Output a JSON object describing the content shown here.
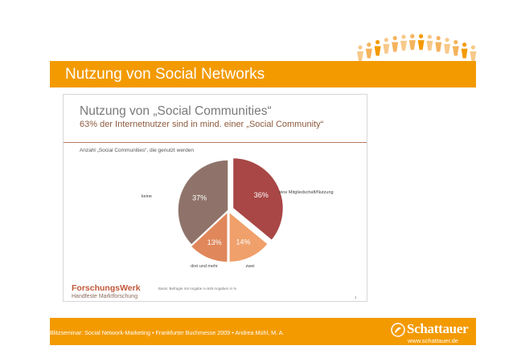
{
  "header": {
    "title": "Nutzung von Social Networks",
    "logo_icon": "people-chain-icon"
  },
  "slide": {
    "title": "Nutzung von „Social Communities“",
    "subtitle": "63% der Internetnutzer sind in mind. einer „Social Community“",
    "chart_heading": "Anzahl „Social Communities“, die genutzt werden",
    "source_note": "Basis: Befragte mit Angabe n=545 Angaben in %",
    "slide_number": "1",
    "logo": {
      "name": "ForschungsWerk",
      "tagline": "Handfeste Marktforschung"
    }
  },
  "chart_data": {
    "type": "pie",
    "title": "Anzahl „Social Communities“, die genutzt werden",
    "legend": "none",
    "slices": [
      {
        "label": "eine Mitgliedschaft/Nutzung",
        "value": 36,
        "value_label": "36%",
        "color": "#a94646"
      },
      {
        "label": "zwei",
        "value": 14,
        "value_label": "14%",
        "color": "#f0a06a"
      },
      {
        "label": "drei und mehr",
        "value": 13,
        "value_label": "13%",
        "color": "#e0875b"
      },
      {
        "label": "keine",
        "value": 37,
        "value_label": "37%",
        "color": "#8f736a"
      }
    ]
  },
  "footer": {
    "text": "Blitzseminar: Social Network-Marketing • Frankfurter Buchmesse 2009 • Andrea Mühl, M. A.",
    "publisher_name": "Schattauer",
    "publisher_url": "www.schattauer.de",
    "publisher_icon": "schattauer-emblem-icon"
  },
  "colors": {
    "accent": "#f39a00",
    "slide_text": "#7a7a7a",
    "subtitle": "#8e5a3e"
  }
}
